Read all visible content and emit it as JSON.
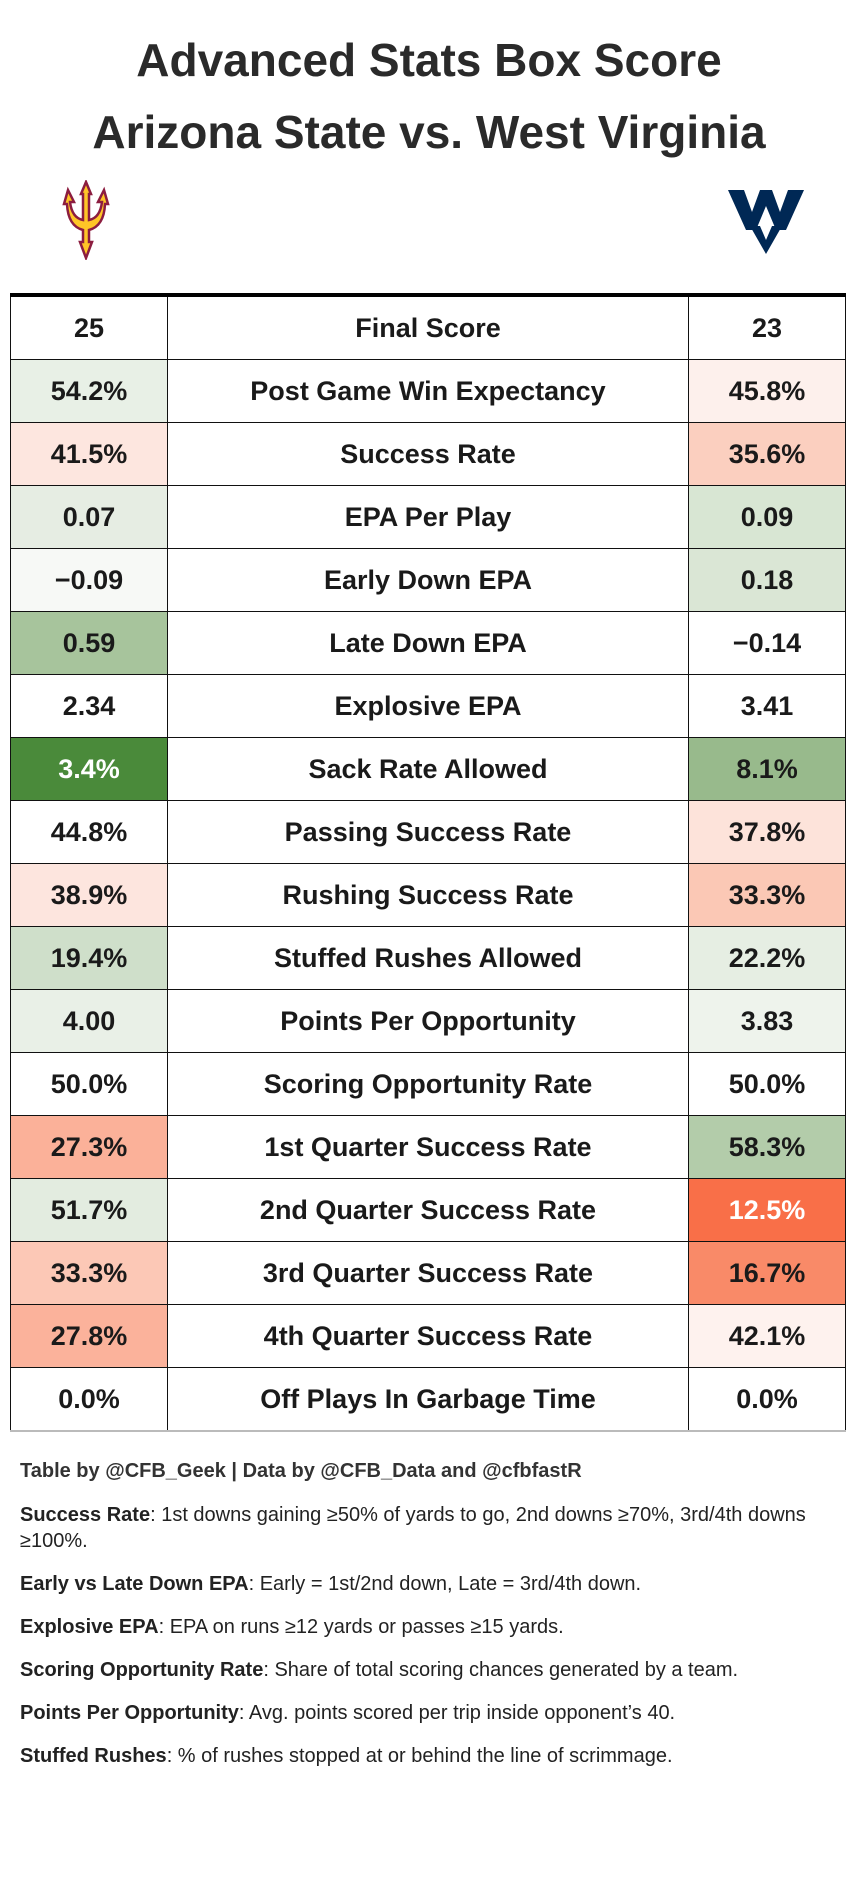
{
  "header": {
    "title_line1": "Advanced Stats Box Score",
    "title_line2": "Arizona State vs. West Virginia"
  },
  "table": {
    "head": {
      "left": "25",
      "label": "Final Score",
      "right": "23"
    },
    "rows": [
      {
        "left": "54.2%",
        "label": "Post Game Win Expectancy",
        "right": "45.8%",
        "left_fill": "#e8f0e6",
        "right_fill": "#fdf0ec"
      },
      {
        "left": "41.5%",
        "label": "Success Rate",
        "right": "35.6%",
        "left_fill": "#fde6df",
        "right_fill": "#fbcfbf"
      },
      {
        "left": "0.07",
        "label": "EPA Per Play",
        "right": "0.09",
        "left_fill": "#e6ede3",
        "right_fill": "#d8e6d3"
      },
      {
        "left": "−0.09",
        "label": "Early Down EPA",
        "right": "0.18",
        "left_fill": "#f7f9f6",
        "right_fill": "#dae6d5"
      },
      {
        "left": "0.59",
        "label": "Late Down EPA",
        "right": "−0.14",
        "left_fill": "#a7c49c",
        "right_fill": "#ffffff"
      },
      {
        "left": "2.34",
        "label": "Explosive EPA",
        "right": "3.41",
        "left_fill": "#ffffff",
        "right_fill": "#ffffff"
      },
      {
        "left": "3.4%",
        "label": "Sack Rate Allowed",
        "right": "8.1%",
        "left_fill": "#4a8a3a",
        "right_fill": "#98ba8c"
      },
      {
        "left": "44.8%",
        "label": "Passing Success Rate",
        "right": "37.8%",
        "left_fill": "#ffffff",
        "right_fill": "#fde3da"
      },
      {
        "left": "38.9%",
        "label": "Rushing Success Rate",
        "right": "33.3%",
        "left_fill": "#fde5de",
        "right_fill": "#fbc8b5"
      },
      {
        "left": "19.4%",
        "label": "Stuffed Rushes Allowed",
        "right": "22.2%",
        "left_fill": "#cfdfca",
        "right_fill": "#e6eee3"
      },
      {
        "left": "4.00",
        "label": "Points Per Opportunity",
        "right": "3.83",
        "left_fill": "#e9f0e7",
        "right_fill": "#eef3ec"
      },
      {
        "left": "50.0%",
        "label": "Scoring Opportunity Rate",
        "right": "50.0%",
        "left_fill": "#ffffff",
        "right_fill": "#ffffff"
      },
      {
        "left": "27.3%",
        "label": "1st Quarter Success Rate",
        "right": "58.3%",
        "left_fill": "#fbb199",
        "right_fill": "#b3ccaa"
      },
      {
        "left": "51.7%",
        "label": "2nd Quarter Success Rate",
        "right": "12.5%",
        "left_fill": "#e3ece0",
        "right_fill": "#f96f48"
      },
      {
        "left": "33.3%",
        "label": "3rd Quarter Success Rate",
        "right": "16.7%",
        "left_fill": "#fcc8b6",
        "right_fill": "#f98a68"
      },
      {
        "left": "27.8%",
        "label": "4th Quarter Success Rate",
        "right": "42.1%",
        "left_fill": "#fbb29b",
        "right_fill": "#fef2ee"
      },
      {
        "left": "0.0%",
        "label": "Off Plays In Garbage Time",
        "right": "0.0%",
        "left_fill": "#ffffff",
        "right_fill": "#ffffff"
      }
    ]
  },
  "footer": {
    "credit": "Table by @CFB_Geek | Data by @CFB_Data and @cfbfastR",
    "notes": [
      {
        "term": "Success Rate",
        "text": ": 1st downs gaining ≥50% of yards to go, 2nd downs ≥70%, 3rd/4th downs ≥100%."
      },
      {
        "term": "Early vs Late Down EPA",
        "text": ": Early = 1st/2nd down, Late = 3rd/4th down."
      },
      {
        "term": "Explosive EPA",
        "text": ": EPA on runs ≥12 yards or passes ≥15 yards."
      },
      {
        "term": "Scoring Opportunity Rate",
        "text": ": Share of total scoring chances generated by a team."
      },
      {
        "term": "Points Per Opportunity",
        "text": ": Avg. points scored per trip inside opponent’s 40."
      },
      {
        "term": "Stuffed Rushes",
        "text": ": % of rushes stopped at or behind the line of scrimmage."
      }
    ]
  }
}
